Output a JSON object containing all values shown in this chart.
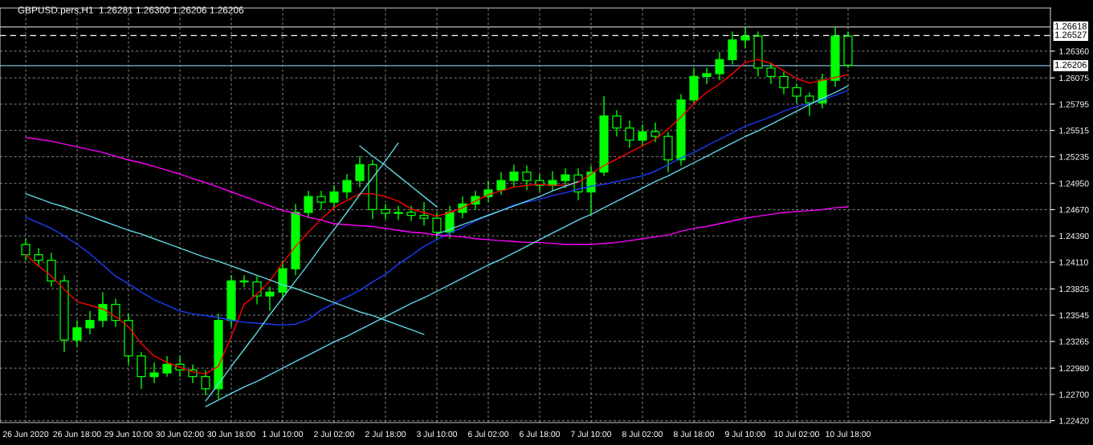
{
  "chart_data": {
    "type": "candlestick",
    "title": "GBPUSD.pers,H1  1.26281 1.26300 1.26206 1.26206",
    "categories": [
      "26 Jun 2020",
      null,
      null,
      null,
      "26 Jun 18:00",
      null,
      null,
      null,
      "29 Jun 10:00",
      null,
      null,
      null,
      "30 Jun 02:00",
      null,
      null,
      null,
      "30 Jun 18:00",
      null,
      null,
      null,
      "1 Jul 10:00",
      null,
      null,
      null,
      "2 Jul 02:00",
      null,
      null,
      null,
      "2 Jul 18:00",
      null,
      null,
      null,
      "3 Jul 10:00",
      null,
      null,
      null,
      "6 Jul 02:00",
      null,
      null,
      null,
      "6 Jul 18:00",
      null,
      null,
      null,
      "7 Jul 10:00",
      null,
      null,
      null,
      "8 Jul 02:00",
      null,
      null,
      null,
      "8 Jul 18:00",
      null,
      null,
      null,
      "9 Jul 10:00",
      null,
      null,
      null,
      "10 Jul 02:00",
      null,
      null,
      null,
      "10 Jul 18:00"
    ],
    "ylim": [
      1.224,
      1.2682
    ],
    "yticks": [
      {
        "value": 1.2242,
        "label": "1.22420"
      },
      {
        "value": 1.227,
        "label": "1.22700"
      },
      {
        "value": 1.2298,
        "label": "1.22980"
      },
      {
        "value": 1.23265,
        "label": "1.23265"
      },
      {
        "value": 1.23545,
        "label": "1.23545"
      },
      {
        "value": 1.23825,
        "label": "1.23825"
      },
      {
        "value": 1.2411,
        "label": "1.24110"
      },
      {
        "value": 1.2439,
        "label": "1.24390"
      },
      {
        "value": 1.2467,
        "label": "1.24670"
      },
      {
        "value": 1.2495,
        "label": "1.24950"
      },
      {
        "value": 1.25235,
        "label": "1.25235"
      },
      {
        "value": 1.25515,
        "label": "1.25515"
      },
      {
        "value": 1.25795,
        "label": "1.25795"
      },
      {
        "value": 1.26075,
        "label": "1.26075"
      },
      {
        "value": 1.2636,
        "label": "1.26360"
      }
    ],
    "grid": true,
    "ref_lines": [
      {
        "axis": "y",
        "value": 1.26618,
        "label": "1.26618",
        "color": "#c0c0c0",
        "line_style": "solid"
      },
      {
        "axis": "y",
        "value": 1.26527,
        "label": "1.26527",
        "color": "#ffffff",
        "line_style": "dashed"
      },
      {
        "axis": "y",
        "value": 1.26206,
        "label": "1.26206",
        "color": "#7ab8d9",
        "line_style": "solid"
      }
    ],
    "series": [
      {
        "color": "#00ff00",
        "ohlc": [
          [
            1.243,
            1.2436,
            1.2413,
            1.2419
          ],
          [
            1.2419,
            1.2426,
            1.2406,
            1.2413
          ],
          [
            1.2413,
            1.2421,
            1.2385,
            1.2391
          ],
          [
            1.2391,
            1.2397,
            1.2315,
            1.2328
          ],
          [
            1.2328,
            1.2349,
            1.2321,
            1.2341
          ],
          [
            1.2341,
            1.2359,
            1.2334,
            1.2349
          ],
          [
            1.2349,
            1.2379,
            1.2342,
            1.2366
          ],
          [
            1.2366,
            1.2372,
            1.2342,
            1.2349
          ],
          [
            1.2349,
            1.2356,
            1.2302,
            1.2311
          ],
          [
            1.2311,
            1.2315,
            1.2276,
            1.2289
          ],
          [
            1.2289,
            1.2304,
            1.2282,
            1.2293
          ],
          [
            1.2293,
            1.2311,
            1.2289,
            1.2302
          ],
          [
            1.2302,
            1.2311,
            1.2289,
            1.2296
          ],
          [
            1.2296,
            1.2302,
            1.2282,
            1.2289
          ],
          [
            1.2289,
            1.2296,
            1.2269,
            1.2276
          ],
          [
            1.2276,
            1.2356,
            1.2265,
            1.2349
          ],
          [
            1.2349,
            1.2397,
            1.2342,
            1.2391
          ],
          [
            1.2391,
            1.2397,
            1.2384,
            1.239
          ],
          [
            1.239,
            1.2396,
            1.2366,
            1.2375
          ],
          [
            1.2375,
            1.2385,
            1.2359,
            1.2379
          ],
          [
            1.2379,
            1.2413,
            1.2372,
            1.2404
          ],
          [
            1.2404,
            1.2473,
            1.2397,
            1.2464
          ],
          [
            1.2464,
            1.2487,
            1.2458,
            1.2481
          ],
          [
            1.2481,
            1.2487,
            1.2467,
            1.2475
          ],
          [
            1.2475,
            1.2493,
            1.2468,
            1.2486
          ],
          [
            1.2486,
            1.2505,
            1.2479,
            1.2498
          ],
          [
            1.2498,
            1.2524,
            1.2491,
            1.2515
          ],
          [
            1.2515,
            1.252,
            1.2457,
            1.2467
          ],
          [
            1.2467,
            1.2473,
            1.2457,
            1.2463
          ],
          [
            1.2463,
            1.2471,
            1.2456,
            1.2464
          ],
          [
            1.2464,
            1.2471,
            1.2455,
            1.2461
          ],
          [
            1.2461,
            1.2475,
            1.245,
            1.2458
          ],
          [
            1.2458,
            1.2464,
            1.2436,
            1.2443
          ],
          [
            1.2443,
            1.2471,
            1.2436,
            1.2464
          ],
          [
            1.2464,
            1.2481,
            1.2458,
            1.2473
          ],
          [
            1.2473,
            1.2487,
            1.2467,
            1.2481
          ],
          [
            1.2481,
            1.2498,
            1.2475,
            1.2488
          ],
          [
            1.2488,
            1.2507,
            1.2483,
            1.2498
          ],
          [
            1.2498,
            1.2515,
            1.2491,
            1.2507
          ],
          [
            1.2507,
            1.2514,
            1.2488,
            1.2498
          ],
          [
            1.2498,
            1.2505,
            1.2486,
            1.2493
          ],
          [
            1.2493,
            1.2508,
            1.2487,
            1.2498
          ],
          [
            1.2498,
            1.2511,
            1.249,
            1.2504
          ],
          [
            1.2504,
            1.2511,
            1.2477,
            1.2486
          ],
          [
            1.2486,
            1.2514,
            1.2461,
            1.2507
          ],
          [
            1.2507,
            1.2588,
            1.2503,
            1.2567
          ],
          [
            1.2567,
            1.2573,
            1.2545,
            1.2554
          ],
          [
            1.2554,
            1.2562,
            1.2533,
            1.2541
          ],
          [
            1.2541,
            1.2558,
            1.2534,
            1.255
          ],
          [
            1.255,
            1.256,
            1.2539,
            1.2545
          ],
          [
            1.2545,
            1.255,
            1.2507,
            1.252
          ],
          [
            1.252,
            1.259,
            1.2514,
            1.2584
          ],
          [
            1.2584,
            1.2618,
            1.2579,
            1.2609
          ],
          [
            1.2609,
            1.2618,
            1.2601,
            1.2612
          ],
          [
            1.2612,
            1.2635,
            1.2605,
            1.2627
          ],
          [
            1.2627,
            1.2657,
            1.2622,
            1.2648
          ],
          [
            1.2648,
            1.2662,
            1.2639,
            1.2652
          ],
          [
            1.2652,
            1.2657,
            1.2609,
            1.2618
          ],
          [
            1.2618,
            1.2624,
            1.2601,
            1.2609
          ],
          [
            1.2609,
            1.2614,
            1.259,
            1.2597
          ],
          [
            1.2597,
            1.2601,
            1.2581,
            1.2588
          ],
          [
            1.2588,
            1.2592,
            1.2567,
            1.2581
          ],
          [
            1.2581,
            1.2612,
            1.2575,
            1.2605
          ],
          [
            1.2605,
            1.2662,
            1.2598,
            1.2652
          ],
          [
            1.2652,
            1.2657,
            1.2618,
            1.2621
          ]
        ]
      },
      {
        "type": "line",
        "color": "#ff0000",
        "values": [
          1.2419,
          1.2407,
          1.2396,
          1.2382,
          1.2369,
          1.2365,
          1.2361,
          1.2353,
          1.2342,
          1.2324,
          1.2311,
          1.2304,
          1.2299,
          1.2294,
          1.2292,
          1.23,
          1.2332,
          1.2366,
          1.2377,
          1.2391,
          1.241,
          1.2428,
          1.2443,
          1.2457,
          1.2469,
          1.2477,
          1.2484,
          1.2484,
          1.2481,
          1.2476,
          1.2468,
          1.2464,
          1.246,
          1.2464,
          1.2469,
          1.2476,
          1.2483,
          1.2487,
          1.2491,
          1.2493,
          1.2494,
          1.2493,
          1.2493,
          1.2496,
          1.2505,
          1.2514,
          1.2521,
          1.2528,
          1.2535,
          1.2542,
          1.2553,
          1.2566,
          1.258,
          1.2592,
          1.2601,
          1.2612,
          1.2624,
          1.2627,
          1.2623,
          1.2615,
          1.2607,
          1.2602,
          1.2605,
          1.2608,
          1.2611
        ]
      },
      {
        "type": "line",
        "color": "#1e3cff",
        "values": [
          1.2459,
          1.2453,
          1.2447,
          1.2439,
          1.243,
          1.242,
          1.2408,
          1.2396,
          1.2388,
          1.2379,
          1.2371,
          1.2365,
          1.2359,
          1.2356,
          1.2354,
          1.2352,
          1.2349,
          1.2347,
          1.2346,
          1.2345,
          1.2344,
          1.2345,
          1.235,
          1.236,
          1.2367,
          1.2374,
          1.2381,
          1.239,
          1.2398,
          1.2409,
          1.2418,
          1.2428,
          1.2435,
          1.2442,
          1.2448,
          1.2455,
          1.2461,
          1.2466,
          1.2472,
          1.2475,
          1.2478,
          1.2482,
          1.2485,
          1.2489,
          1.2492,
          1.2494,
          1.2497,
          1.25,
          1.2503,
          1.2508,
          1.2515,
          1.2522,
          1.2528,
          1.2535,
          1.2542,
          1.2549,
          1.2556,
          1.2561,
          1.2566,
          1.2572,
          1.2577,
          1.258,
          1.2584,
          1.2589,
          1.2594
        ]
      },
      {
        "type": "line",
        "color": "#ff00ff",
        "values": [
          1.2544,
          1.2542,
          1.254,
          1.2537,
          1.2534,
          1.2531,
          1.2528,
          1.2524,
          1.252,
          1.2517,
          1.2513,
          1.2509,
          1.2505,
          1.25,
          1.2496,
          1.2491,
          1.2486,
          1.2481,
          1.2476,
          1.2471,
          1.2466,
          1.2463,
          1.2459,
          1.2456,
          1.2452,
          1.2451,
          1.245,
          1.2449,
          1.2447,
          1.2445,
          1.2443,
          1.2442,
          1.244,
          1.2439,
          1.2438,
          1.2436,
          1.2435,
          1.2434,
          1.2433,
          1.2432,
          1.2432,
          1.2431,
          1.243,
          1.243,
          1.243,
          1.2431,
          1.2432,
          1.2434,
          1.2436,
          1.2438,
          1.244,
          1.2444,
          1.2447,
          1.2449,
          1.2452,
          1.2455,
          1.2458,
          1.246,
          1.2462,
          1.2464,
          1.2465,
          1.2466,
          1.2467,
          1.2469,
          1.247
        ]
      },
      {
        "type": "line",
        "color": "#5fd7e0",
        "values": [
          1.2484,
          1.2479,
          1.2474,
          1.247,
          1.2465,
          1.246,
          1.2455,
          1.245,
          1.2445,
          1.2441,
          1.2436,
          1.2431,
          1.2426,
          1.2421,
          1.2416,
          1.2412,
          1.2407,
          1.2402,
          1.2397,
          1.2392,
          1.2387,
          1.2383,
          1.2378,
          1.2373,
          1.2368,
          1.2363,
          1.2358,
          1.2354,
          1.2349,
          1.2344,
          1.2339,
          1.2334,
          null,
          null,
          null,
          null,
          null,
          null,
          null,
          null,
          null,
          null,
          null,
          null,
          null,
          null,
          null,
          null,
          null,
          null,
          null,
          null,
          null,
          null,
          null,
          null,
          null,
          null,
          null,
          null,
          null,
          null,
          null,
          null,
          null
        ]
      },
      {
        "type": "line",
        "color": "#5fd7e0",
        "values": [
          null,
          null,
          null,
          null,
          null,
          null,
          null,
          null,
          null,
          null,
          null,
          null,
          null,
          null,
          1.2257,
          1.2264,
          1.2271,
          1.2278,
          1.2284,
          1.2291,
          1.2298,
          1.2305,
          1.2312,
          1.2319,
          1.2326,
          1.2332,
          1.2339,
          1.2346,
          1.2353,
          1.236,
          1.2367,
          1.2373,
          1.238,
          1.2387,
          1.2394,
          1.2401,
          1.2408,
          1.2414,
          1.2421,
          1.2428,
          1.2435,
          1.2442,
          1.2449,
          1.2456,
          1.2462,
          1.2469,
          1.2476,
          1.2483,
          1.249,
          1.2497,
          1.2503,
          1.251,
          1.2517,
          1.2524,
          1.2531,
          1.2538,
          1.2545,
          1.2551,
          1.2558,
          1.2565,
          1.2572,
          1.2579,
          1.2586,
          1.2592,
          1.2599
        ]
      },
      {
        "type": "line",
        "color": "#5fd7e0",
        "values": [
          null,
          null,
          null,
          null,
          null,
          null,
          null,
          null,
          null,
          null,
          null,
          null,
          null,
          null,
          1.2263,
          1.2281,
          1.23,
          1.2318,
          1.2336,
          1.2355,
          1.2373,
          1.2391,
          1.2409,
          1.2428,
          1.2446,
          1.2464,
          1.2483,
          1.2501,
          1.2519,
          1.2538,
          null,
          null,
          null,
          null,
          null,
          null,
          null,
          null,
          null,
          null,
          null,
          null,
          null,
          null,
          null,
          null,
          null,
          null,
          null,
          null,
          null,
          null,
          null,
          null,
          null,
          null,
          null,
          null,
          null,
          null,
          null,
          null,
          null,
          null,
          null
        ]
      },
      {
        "type": "line",
        "color": "#5fd7e0",
        "values": [
          null,
          null,
          null,
          null,
          null,
          null,
          null,
          null,
          null,
          null,
          null,
          null,
          null,
          null,
          null,
          null,
          null,
          null,
          null,
          null,
          null,
          null,
          null,
          null,
          null,
          null,
          1.2535,
          1.2524,
          1.2514,
          1.2503,
          1.2492,
          1.2481,
          1.247,
          null,
          null,
          null,
          null,
          null,
          null,
          null,
          null,
          null,
          null,
          null,
          null,
          null,
          null,
          null,
          null,
          null,
          null,
          null,
          null,
          null,
          null,
          null,
          null,
          null,
          null,
          null,
          null,
          null,
          null,
          null,
          null
        ]
      },
      {
        "type": "line",
        "color": "#5fd7e0",
        "values": [
          null,
          null,
          null,
          null,
          null,
          null,
          null,
          null,
          null,
          null,
          null,
          null,
          null,
          null,
          null,
          null,
          null,
          null,
          null,
          null,
          null,
          null,
          null,
          null,
          null,
          null,
          null,
          null,
          null,
          null,
          null,
          null,
          1.2441,
          1.2446,
          1.2451,
          1.2456,
          1.2461,
          1.2466,
          1.2471,
          1.2476,
          1.2481,
          1.2487,
          1.2492,
          1.2497,
          null,
          null,
          null,
          null,
          null,
          null,
          null,
          null,
          null,
          null,
          null,
          null,
          null,
          null,
          null,
          null,
          null,
          null,
          null,
          null,
          null
        ]
      }
    ]
  }
}
